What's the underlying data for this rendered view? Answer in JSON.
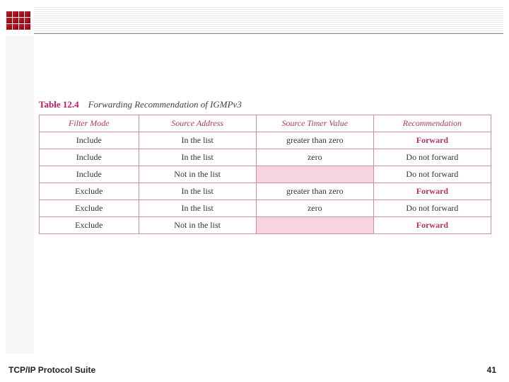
{
  "slide": {
    "footer_left": "TCP/IP Protocol Suite",
    "page_number": "41"
  },
  "table": {
    "number": "Table 12.4",
    "caption": "Forwarding Recommendation of IGMPv3",
    "columns": [
      "Filter Mode",
      "Source Address",
      "Source Timer Value",
      "Recommendation"
    ],
    "col_widths": [
      "22%",
      "26%",
      "26%",
      "26%"
    ],
    "rows": [
      {
        "filter": "Include",
        "source": "In the list",
        "timer": "greater than zero",
        "timer_pink": false,
        "rec": "Forward",
        "rec_bold": true
      },
      {
        "filter": "Include",
        "source": "In the list",
        "timer": "zero",
        "timer_pink": false,
        "rec": "Do not forward",
        "rec_bold": false
      },
      {
        "filter": "Include",
        "source": "Not in the list",
        "timer": "",
        "timer_pink": true,
        "rec": "Do not forward",
        "rec_bold": false
      },
      {
        "filter": "Exclude",
        "source": "In the list",
        "timer": "greater than zero",
        "timer_pink": false,
        "rec": "Forward",
        "rec_bold": true
      },
      {
        "filter": "Exclude",
        "source": "In the list",
        "timer": "zero",
        "timer_pink": false,
        "rec": "Do not forward",
        "rec_bold": false
      },
      {
        "filter": "Exclude",
        "source": "Not in the list",
        "timer": "",
        "timer_pink": true,
        "rec": "Forward",
        "rec_bold": true
      }
    ]
  },
  "style": {
    "accent_color": "#c2185b",
    "border_color": "#d88ba8",
    "pink_fill": "#f7d4e1",
    "header_text_color": "#b0356a",
    "body_text_color": "#333333",
    "background": "#ffffff",
    "title_fontsize": 13,
    "cell_fontsize": 12
  }
}
